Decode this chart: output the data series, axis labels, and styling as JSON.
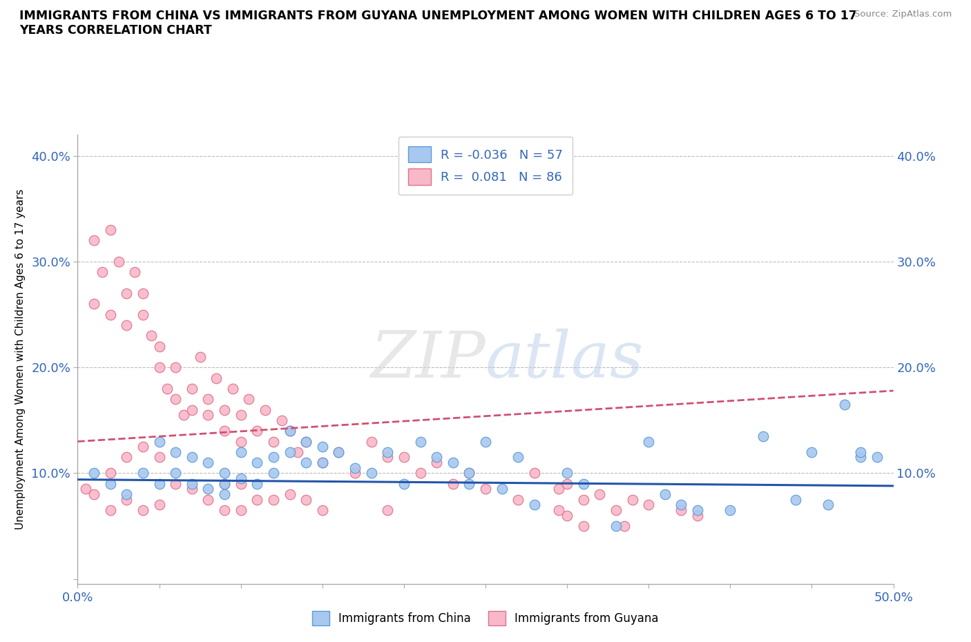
{
  "title": "IMMIGRANTS FROM CHINA VS IMMIGRANTS FROM GUYANA UNEMPLOYMENT AMONG WOMEN WITH CHILDREN AGES 6 TO 17\nYEARS CORRELATION CHART",
  "source_text": "Source: ZipAtlas.com",
  "ylabel": "Unemployment Among Women with Children Ages 6 to 17 years",
  "xlim": [
    0.0,
    0.5
  ],
  "ylim": [
    -0.005,
    0.42
  ],
  "xticks": [
    0.0,
    0.05,
    0.1,
    0.15,
    0.2,
    0.25,
    0.3,
    0.35,
    0.4,
    0.45,
    0.5
  ],
  "xticklabels": [
    "0.0%",
    "",
    "",
    "",
    "",
    "",
    "",
    "",
    "",
    "",
    "50.0%"
  ],
  "yticks": [
    0.0,
    0.1,
    0.2,
    0.3,
    0.4
  ],
  "yticklabels": [
    "",
    "10.0%",
    "20.0%",
    "30.0%",
    "40.0%"
  ],
  "color_china": "#a8c8f0",
  "color_guyana": "#f8b8c8",
  "edge_china": "#5b9bd5",
  "edge_guyana": "#e07090",
  "line_color_china": "#2255aa",
  "line_color_guyana": "#d05070",
  "R_china": -0.036,
  "N_china": 57,
  "R_guyana": 0.081,
  "N_guyana": 86,
  "legend_label_china": "Immigrants from China",
  "legend_label_guyana": "Immigrants from Guyana",
  "watermark_zip": "ZIP",
  "watermark_atlas": "atlas",
  "china_x": [
    0.01,
    0.02,
    0.03,
    0.04,
    0.05,
    0.05,
    0.06,
    0.06,
    0.07,
    0.07,
    0.08,
    0.08,
    0.09,
    0.09,
    0.09,
    0.1,
    0.1,
    0.11,
    0.11,
    0.12,
    0.12,
    0.13,
    0.13,
    0.14,
    0.14,
    0.15,
    0.15,
    0.16,
    0.17,
    0.18,
    0.19,
    0.2,
    0.21,
    0.22,
    0.23,
    0.24,
    0.24,
    0.25,
    0.26,
    0.27,
    0.28,
    0.3,
    0.31,
    0.33,
    0.35,
    0.36,
    0.37,
    0.38,
    0.4,
    0.42,
    0.44,
    0.45,
    0.46,
    0.47,
    0.48,
    0.48,
    0.49
  ],
  "china_y": [
    0.1,
    0.09,
    0.08,
    0.1,
    0.13,
    0.09,
    0.12,
    0.1,
    0.115,
    0.09,
    0.11,
    0.085,
    0.1,
    0.09,
    0.08,
    0.12,
    0.095,
    0.11,
    0.09,
    0.115,
    0.1,
    0.14,
    0.12,
    0.13,
    0.11,
    0.125,
    0.11,
    0.12,
    0.105,
    0.1,
    0.12,
    0.09,
    0.13,
    0.115,
    0.11,
    0.1,
    0.09,
    0.13,
    0.085,
    0.115,
    0.07,
    0.1,
    0.09,
    0.05,
    0.13,
    0.08,
    0.07,
    0.065,
    0.065,
    0.135,
    0.075,
    0.12,
    0.07,
    0.165,
    0.115,
    0.12,
    0.115
  ],
  "guyana_x": [
    0.005,
    0.01,
    0.01,
    0.01,
    0.015,
    0.02,
    0.02,
    0.02,
    0.02,
    0.025,
    0.03,
    0.03,
    0.03,
    0.03,
    0.035,
    0.04,
    0.04,
    0.04,
    0.04,
    0.045,
    0.05,
    0.05,
    0.05,
    0.05,
    0.055,
    0.06,
    0.06,
    0.06,
    0.065,
    0.07,
    0.07,
    0.07,
    0.075,
    0.08,
    0.08,
    0.08,
    0.085,
    0.09,
    0.09,
    0.09,
    0.09,
    0.095,
    0.1,
    0.1,
    0.1,
    0.1,
    0.105,
    0.11,
    0.11,
    0.115,
    0.12,
    0.12,
    0.125,
    0.13,
    0.13,
    0.135,
    0.14,
    0.14,
    0.15,
    0.15,
    0.16,
    0.17,
    0.18,
    0.19,
    0.19,
    0.2,
    0.21,
    0.22,
    0.23,
    0.24,
    0.25,
    0.27,
    0.28,
    0.295,
    0.3,
    0.31,
    0.32,
    0.33,
    0.34,
    0.35,
    0.37,
    0.38,
    0.295,
    0.3,
    0.31,
    0.335
  ],
  "guyana_y": [
    0.085,
    0.32,
    0.26,
    0.08,
    0.29,
    0.33,
    0.25,
    0.1,
    0.065,
    0.3,
    0.27,
    0.24,
    0.115,
    0.075,
    0.29,
    0.25,
    0.27,
    0.125,
    0.065,
    0.23,
    0.2,
    0.22,
    0.115,
    0.07,
    0.18,
    0.17,
    0.2,
    0.09,
    0.155,
    0.18,
    0.16,
    0.085,
    0.21,
    0.17,
    0.155,
    0.075,
    0.19,
    0.16,
    0.14,
    0.09,
    0.065,
    0.18,
    0.155,
    0.13,
    0.09,
    0.065,
    0.17,
    0.14,
    0.075,
    0.16,
    0.13,
    0.075,
    0.15,
    0.14,
    0.08,
    0.12,
    0.13,
    0.075,
    0.11,
    0.065,
    0.12,
    0.1,
    0.13,
    0.115,
    0.065,
    0.115,
    0.1,
    0.11,
    0.09,
    0.1,
    0.085,
    0.075,
    0.1,
    0.085,
    0.09,
    0.075,
    0.08,
    0.065,
    0.075,
    0.07,
    0.065,
    0.06,
    0.065,
    0.06,
    0.05,
    0.05
  ],
  "trend_china_y0": 0.094,
  "trend_china_y1": 0.088,
  "trend_guyana_y0": 0.13,
  "trend_guyana_y1": 0.178
}
